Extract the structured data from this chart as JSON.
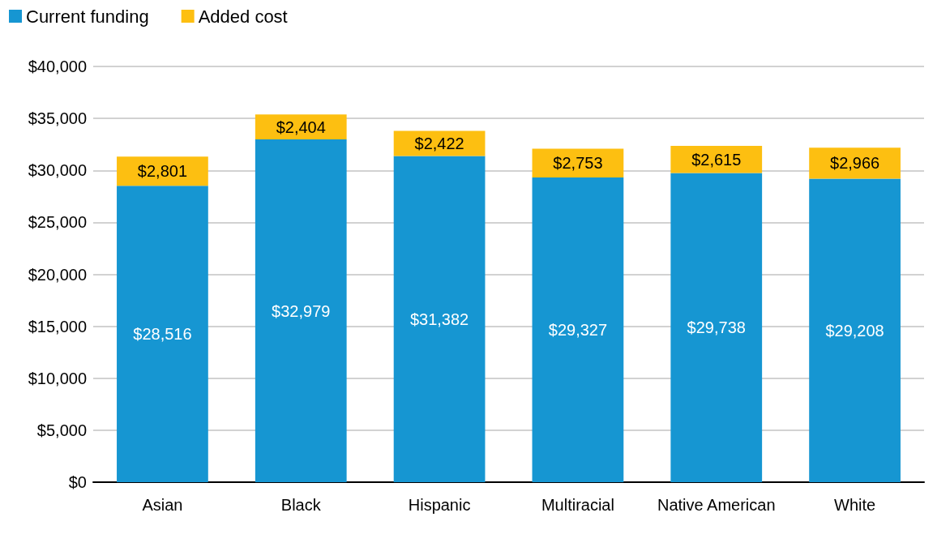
{
  "chart_data": {
    "type": "bar",
    "stacked": true,
    "categories": [
      "Asian",
      "Black",
      "Hispanic",
      "Multiracial",
      "Native American",
      "White"
    ],
    "series": [
      {
        "name": "Current funding",
        "color": "#1696d2",
        "values": [
          28516,
          32979,
          31382,
          29327,
          29738,
          29208
        ],
        "value_labels": [
          "$28,516",
          "$32,979",
          "$31,382",
          "$29,327",
          "$29,738",
          "$29,208"
        ]
      },
      {
        "name": "Added cost",
        "color": "#fdbf11",
        "values": [
          2801,
          2404,
          2422,
          2753,
          2615,
          2966
        ],
        "value_labels": [
          "$2,801",
          "$2,404",
          "$2,422",
          "$2,753",
          "$2,615",
          "$2,966"
        ]
      }
    ],
    "ylim": [
      0,
      40000
    ],
    "yticks": [
      {
        "value": 0,
        "label": "$0"
      },
      {
        "value": 5000,
        "label": "$5,000"
      },
      {
        "value": 10000,
        "label": "$10,000"
      },
      {
        "value": 15000,
        "label": "$15,000"
      },
      {
        "value": 20000,
        "label": "$20,000"
      },
      {
        "value": 25000,
        "label": "$25,000"
      },
      {
        "value": 30000,
        "label": "$30,000"
      },
      {
        "value": 35000,
        "label": "$35,000"
      },
      {
        "value": 40000,
        "label": "$40,000"
      }
    ],
    "grid": "y",
    "legend": "top left"
  }
}
